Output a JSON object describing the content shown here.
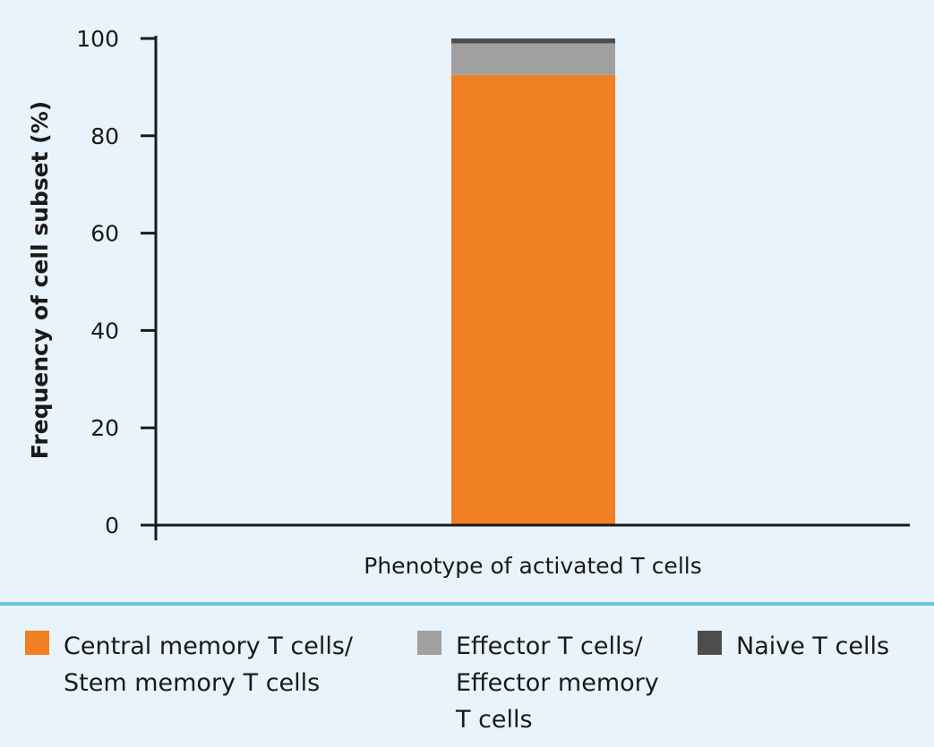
{
  "chart_data": {
    "type": "bar",
    "stacked": true,
    "xlabel": "Phenotype of activated T cells",
    "ylabel": "Frequency of cell subset (%)",
    "ylim": [
      0,
      100
    ],
    "yticks": [
      "0",
      "20",
      "40",
      "60",
      "80",
      "100"
    ],
    "series": [
      {
        "name": "Central memory T cells/\nStem memory T cells",
        "values": [
          92.5
        ],
        "color": "#ef7f22"
      },
      {
        "name": "Effector T cells/\nEffector memory\nT cells",
        "values": [
          6.5
        ],
        "color": "#a0a0a0"
      },
      {
        "name": "Naive T cells",
        "values": [
          1.0
        ],
        "color": "#4d4d4d"
      }
    ],
    "legend_position": "bottom"
  }
}
